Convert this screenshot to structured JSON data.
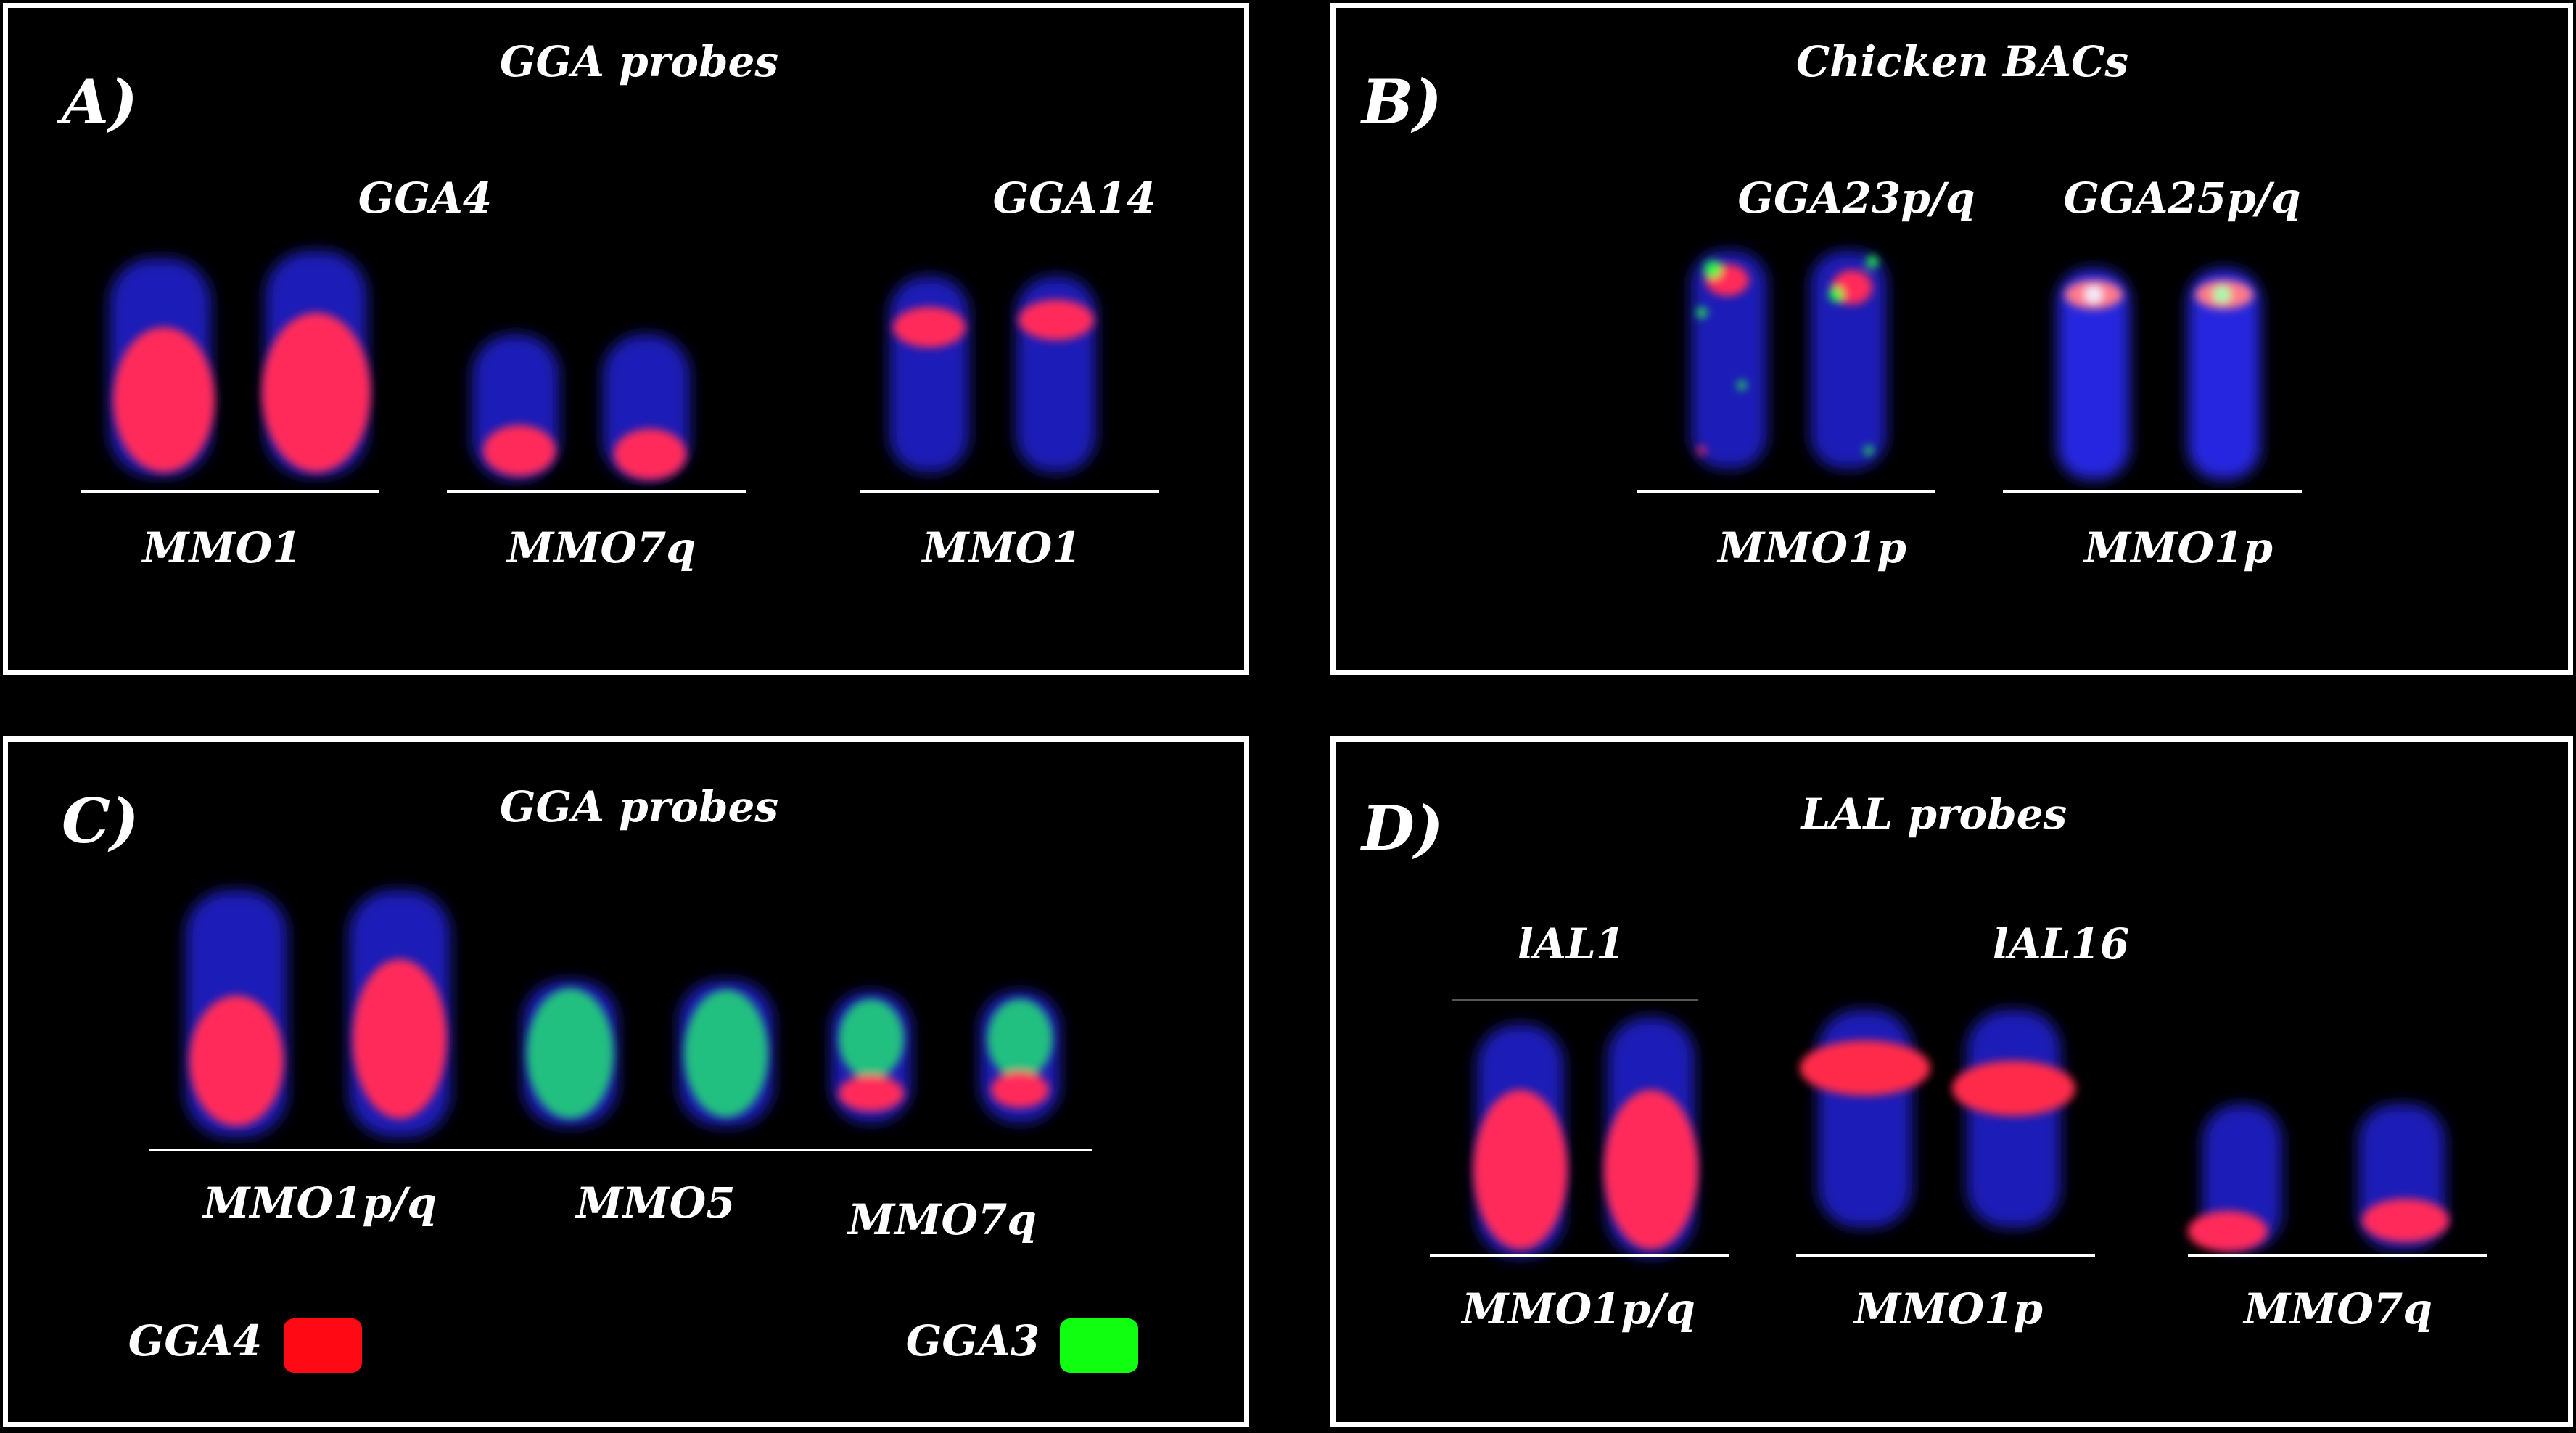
{
  "panel_a": {
    "letter": "A)",
    "title": "GGA probes",
    "probe_labels": [
      "GGA4",
      "GGA14"
    ],
    "chrom_labels": [
      "MMO1",
      "MMO7q",
      "MMO1"
    ]
  },
  "panel_b": {
    "letter": "B)",
    "title": "Chicken BACs",
    "probe_labels": [
      "GGA23p/q",
      "GGA25p/q"
    ],
    "chrom_labels": [
      "MMO1p",
      "MMO1p"
    ]
  },
  "panel_c": {
    "letter": "C)",
    "title": "GGA probes",
    "chrom_labels": [
      "MMO1p/q",
      "MMO5",
      "MMO7q"
    ],
    "legend": [
      {
        "label": "GGA4",
        "color": "#ff0a14"
      },
      {
        "label": "GGA3",
        "color": "#10ff10"
      }
    ]
  },
  "panel_d": {
    "letter": "D)",
    "title": "LAL probes",
    "probe_labels": [
      "lAL1",
      "lAL16"
    ],
    "chrom_labels": [
      "MMO1p/q",
      "MMO1p",
      "MMO7q"
    ]
  }
}
